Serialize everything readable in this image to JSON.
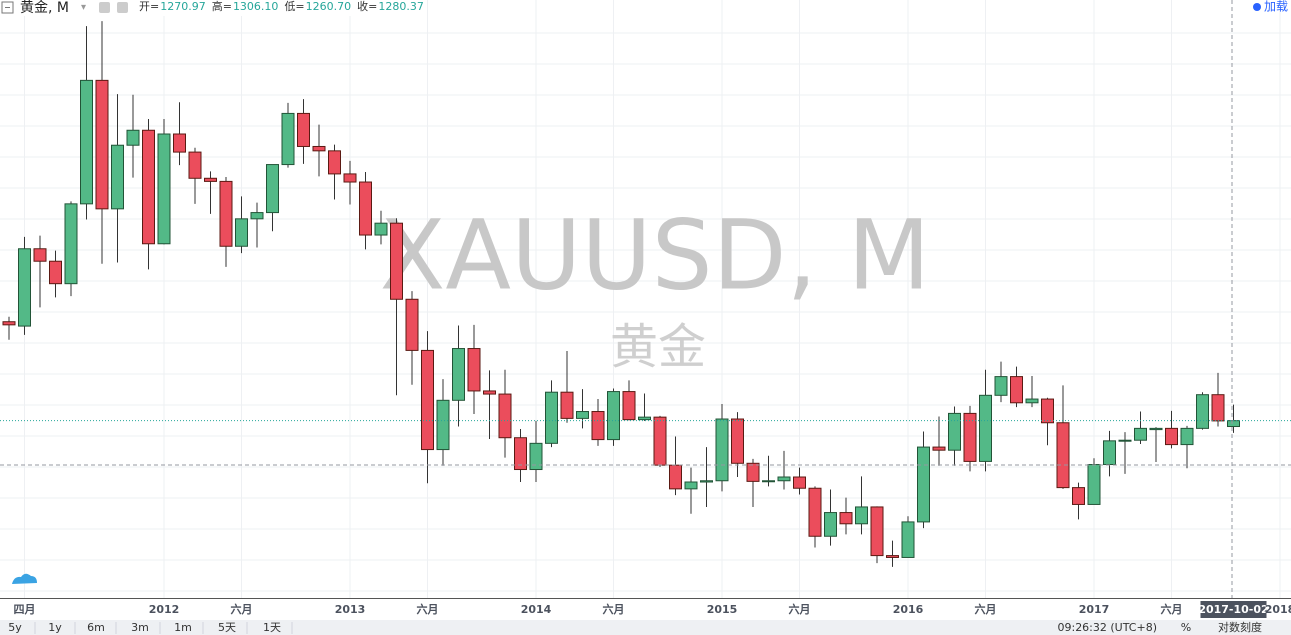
{
  "header": {
    "symbol": "黄金, M",
    "ohlc": [
      {
        "label": "开=",
        "value": "1270.97"
      },
      {
        "label": "高=",
        "value": "1306.10"
      },
      {
        "label": "低=",
        "value": "1260.70"
      },
      {
        "label": "收=",
        "value": "1280.37"
      }
    ],
    "load": "加载"
  },
  "toolbar": {
    "ranges": [
      "5y",
      "1y",
      "6m",
      "3m",
      "1m",
      "5天",
      "1天"
    ],
    "time": "09:26:32 (UTC+8)",
    "percent": "%",
    "log_scale": "对数刻度"
  },
  "chart_data": {
    "type": "candlestick",
    "watermark": "XAUUSD, M",
    "watermark_subtitle": "黄金",
    "up_color": "#53b987",
    "down_color": "#eb4d5c",
    "ylim": [
      996,
      1926
    ],
    "categories": [
      null,
      "四月",
      null,
      null,
      null,
      null,
      null,
      null,
      null,
      null,
      "2012",
      null,
      null,
      null,
      null,
      "六月",
      null,
      null,
      null,
      null,
      null,
      null,
      "2013",
      null,
      null,
      null,
      null,
      "六月",
      null,
      null,
      null,
      null,
      null,
      null,
      "2014",
      null,
      null,
      null,
      null,
      "六月",
      null,
      null,
      null,
      null,
      null,
      null,
      "2015",
      null,
      null,
      null,
      null,
      "六月",
      null,
      null,
      null,
      null,
      null,
      null,
      "2016",
      null,
      null,
      null,
      null,
      "六月",
      null,
      null,
      null,
      null,
      null,
      null,
      "2017",
      null,
      null,
      null,
      null,
      "六月",
      null,
      null,
      null,
      "2017-10-02",
      null,
      null,
      "2018"
    ],
    "open": [
      1439,
      1432,
      1556,
      1536,
      1500,
      1628,
      1826,
      1620,
      1722,
      1746,
      1564,
      1740,
      1711,
      1669,
      1664,
      1560,
      1604,
      1614,
      1691,
      1773,
      1720,
      1713,
      1676,
      1663,
      1578,
      1597,
      1475,
      1393,
      1234,
      1313,
      1396,
      1328,
      1323,
      1253,
      1202,
      1244,
      1326,
      1284,
      1295,
      1250,
      1327,
      1282,
      1286,
      1209,
      1171,
      1182,
      1184,
      1283,
      1212,
      1183,
      1184,
      1190,
      1172,
      1095,
      1133,
      1115,
      1142,
      1064,
      1061,
      1118,
      1238,
      1233,
      1292,
      1215,
      1321,
      1351,
      1309,
      1315,
      1277,
      1173,
      1146,
      1210,
      1248,
      1249,
      1266,
      1268,
      1242,
      1268,
      1322,
      1270.97,
      null,
      null,
      null
    ],
    "high": [
      1447,
      1575,
      1577,
      1553,
      1632,
      1913,
      1921,
      1804,
      1803,
      1764,
      1764,
      1791,
      1718,
      1680,
      1671,
      1640,
      1630,
      1691,
      1790,
      1796,
      1755,
      1723,
      1697,
      1679,
      1617,
      1605,
      1488,
      1424,
      1347,
      1433,
      1434,
      1361,
      1362,
      1267,
      1280,
      1345,
      1392,
      1331,
      1315,
      1332,
      1345,
      1324,
      1288,
      1255,
      1205,
      1238,
      1307,
      1294,
      1219,
      1224,
      1232,
      1205,
      1175,
      1170,
      1157,
      1191,
      1143,
      1088,
      1127,
      1263,
      1287,
      1303,
      1304,
      1362,
      1375,
      1367,
      1352,
      1317,
      1337,
      1181,
      1220,
      1264,
      1262,
      1295,
      1270,
      1296,
      1272,
      1326,
      1357,
      1306.1,
      null,
      null,
      null
    ],
    "low": [
      1410,
      1418,
      1462,
      1478,
      1480,
      1603,
      1532,
      1534,
      1670,
      1523,
      1563,
      1690,
      1628,
      1612,
      1527,
      1549,
      1558,
      1584,
      1686,
      1692,
      1672,
      1635,
      1627,
      1555,
      1563,
      1321,
      1338,
      1180,
      1208,
      1271,
      1291,
      1251,
      1221,
      1182,
      1182,
      1238,
      1277,
      1268,
      1240,
      1240,
      1281,
      1280,
      1206,
      1161,
      1131,
      1142,
      1167,
      1190,
      1142,
      1175,
      1170,
      1162,
      1077,
      1080,
      1098,
      1098,
      1052,
      1046,
      1061,
      1108,
      1208,
      1208,
      1199,
      1199,
      1310,
      1302,
      1302,
      1241,
      1171,
      1122,
      1146,
      1191,
      1195,
      1243,
      1214,
      1236,
      1204,
      1266,
      1271,
      1260.7,
      null,
      null,
      null
    ],
    "close": [
      1434,
      1556,
      1536,
      1500,
      1628,
      1826,
      1620,
      1722,
      1746,
      1564,
      1740,
      1711,
      1669,
      1664,
      1560,
      1604,
      1614,
      1691,
      1773,
      1720,
      1713,
      1676,
      1663,
      1578,
      1597,
      1475,
      1393,
      1234,
      1313,
      1396,
      1328,
      1323,
      1253,
      1202,
      1244,
      1326,
      1284,
      1295,
      1250,
      1327,
      1282,
      1286,
      1209,
      1171,
      1182,
      1184,
      1283,
      1212,
      1183,
      1184,
      1190,
      1172,
      1095,
      1133,
      1115,
      1142,
      1064,
      1061,
      1118,
      1238,
      1233,
      1292,
      1215,
      1321,
      1351,
      1309,
      1315,
      1277,
      1173,
      1146,
      1210,
      1248,
      1249,
      1268,
      1268,
      1242,
      1268,
      1322,
      1280,
      1280.37,
      null,
      null,
      null
    ]
  }
}
